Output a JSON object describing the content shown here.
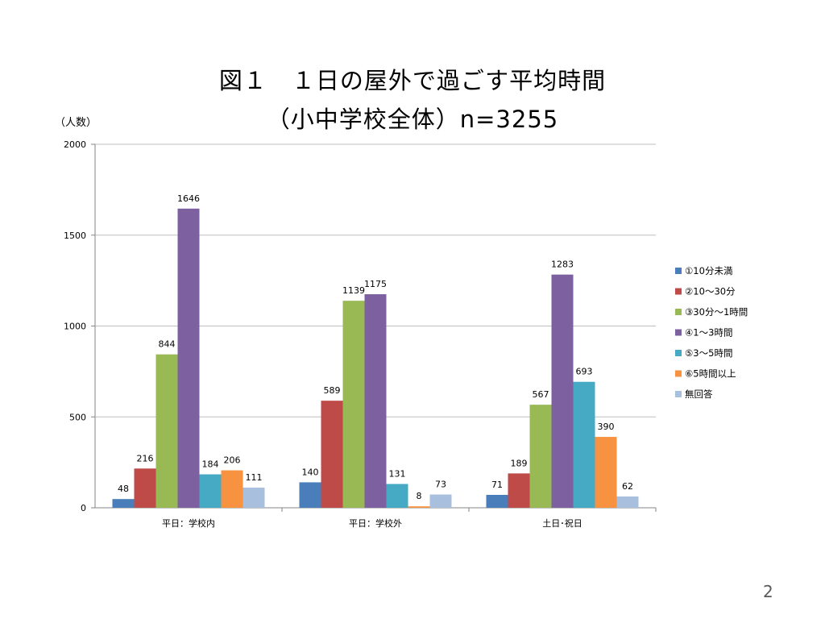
{
  "chart_data": {
    "type": "bar",
    "title": "図１　１日の屋外で過ごす平均時間",
    "subtitle": "（小中学校全体）n=3255",
    "ylabel": "（人数）",
    "xlabel": "",
    "ylim": [
      0,
      2000
    ],
    "yticks": [
      0,
      500,
      1000,
      1500,
      2000
    ],
    "categories": [
      "平日：学校内",
      "平日：学校外",
      "土日･祝日"
    ],
    "series": [
      {
        "name": "①10分未満",
        "color": "#4a7ebb",
        "values": [
          48,
          140,
          71
        ]
      },
      {
        "name": "②10～30分",
        "color": "#be4b48",
        "values": [
          216,
          589,
          189
        ]
      },
      {
        "name": "③30分～1時間",
        "color": "#98b954",
        "values": [
          844,
          1139,
          567
        ]
      },
      {
        "name": "④1～3時間",
        "color": "#7d60a0",
        "values": [
          1646,
          1175,
          1283
        ]
      },
      {
        "name": "⑤3～5時間",
        "color": "#46aac5",
        "values": [
          184,
          131,
          693
        ]
      },
      {
        "name": "⑥5時間以上",
        "color": "#f69240",
        "values": [
          206,
          8,
          390
        ]
      },
      {
        "name": "無回答",
        "color": "#a8c0de",
        "values": [
          111,
          73,
          62
        ]
      }
    ],
    "grid": true,
    "legend": "right"
  },
  "page_number": "2"
}
